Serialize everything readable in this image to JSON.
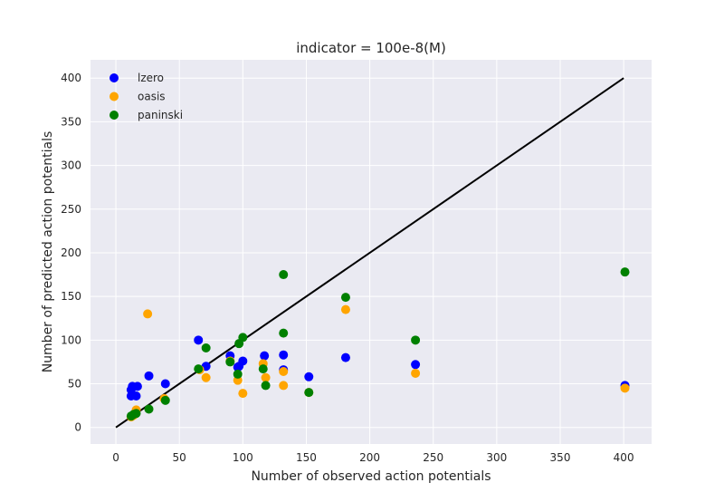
{
  "chart_data": {
    "type": "scatter",
    "title": "indicator = 100e-8(M)",
    "xlabel": "Number of observed action potentials",
    "ylabel": "Number of predicted action potentials",
    "xlim": [
      -20,
      422
    ],
    "ylim": [
      -19,
      421
    ],
    "xticks": [
      0,
      50,
      100,
      150,
      200,
      250,
      300,
      350,
      400
    ],
    "yticks": [
      0,
      50,
      100,
      150,
      200,
      250,
      300,
      350,
      400
    ],
    "grid": true,
    "legend_position": "top-left",
    "reference_line": {
      "x": [
        0,
        400
      ],
      "y": [
        0,
        400
      ],
      "color": "#000000"
    },
    "series": [
      {
        "name": "lzero",
        "color": "#0000ff",
        "points": [
          [
            12,
            36
          ],
          [
            12,
            43
          ],
          [
            13,
            47
          ],
          [
            16,
            36
          ],
          [
            17,
            47
          ],
          [
            26,
            59
          ],
          [
            39,
            50
          ],
          [
            65,
            100
          ],
          [
            71,
            70
          ],
          [
            90,
            82
          ],
          [
            96,
            69
          ],
          [
            97,
            70
          ],
          [
            100,
            76
          ],
          [
            117,
            82
          ],
          [
            132,
            66
          ],
          [
            132,
            83
          ],
          [
            152,
            58
          ],
          [
            181,
            80
          ],
          [
            236,
            72
          ],
          [
            401,
            48
          ]
        ]
      },
      {
        "name": "oasis",
        "color": "#ffa500",
        "points": [
          [
            12,
            12
          ],
          [
            14,
            14
          ],
          [
            16,
            20
          ],
          [
            25,
            130
          ],
          [
            38,
            33
          ],
          [
            66,
            66
          ],
          [
            71,
            57
          ],
          [
            90,
            76
          ],
          [
            96,
            54
          ],
          [
            100,
            39
          ],
          [
            116,
            73
          ],
          [
            118,
            57
          ],
          [
            132,
            48
          ],
          [
            132,
            64
          ],
          [
            152,
            40
          ],
          [
            181,
            135
          ],
          [
            236,
            62
          ],
          [
            401,
            45
          ]
        ]
      },
      {
        "name": "paninski",
        "color": "#008000",
        "points": [
          [
            12,
            13
          ],
          [
            14,
            15
          ],
          [
            16,
            16
          ],
          [
            26,
            21
          ],
          [
            39,
            31
          ],
          [
            65,
            67
          ],
          [
            71,
            91
          ],
          [
            90,
            75
          ],
          [
            96,
            61
          ],
          [
            97,
            96
          ],
          [
            100,
            103
          ],
          [
            116,
            67
          ],
          [
            118,
            48
          ],
          [
            132,
            108
          ],
          [
            132,
            175
          ],
          [
            152,
            40
          ],
          [
            181,
            149
          ],
          [
            236,
            100
          ],
          [
            401,
            178
          ]
        ]
      }
    ]
  }
}
